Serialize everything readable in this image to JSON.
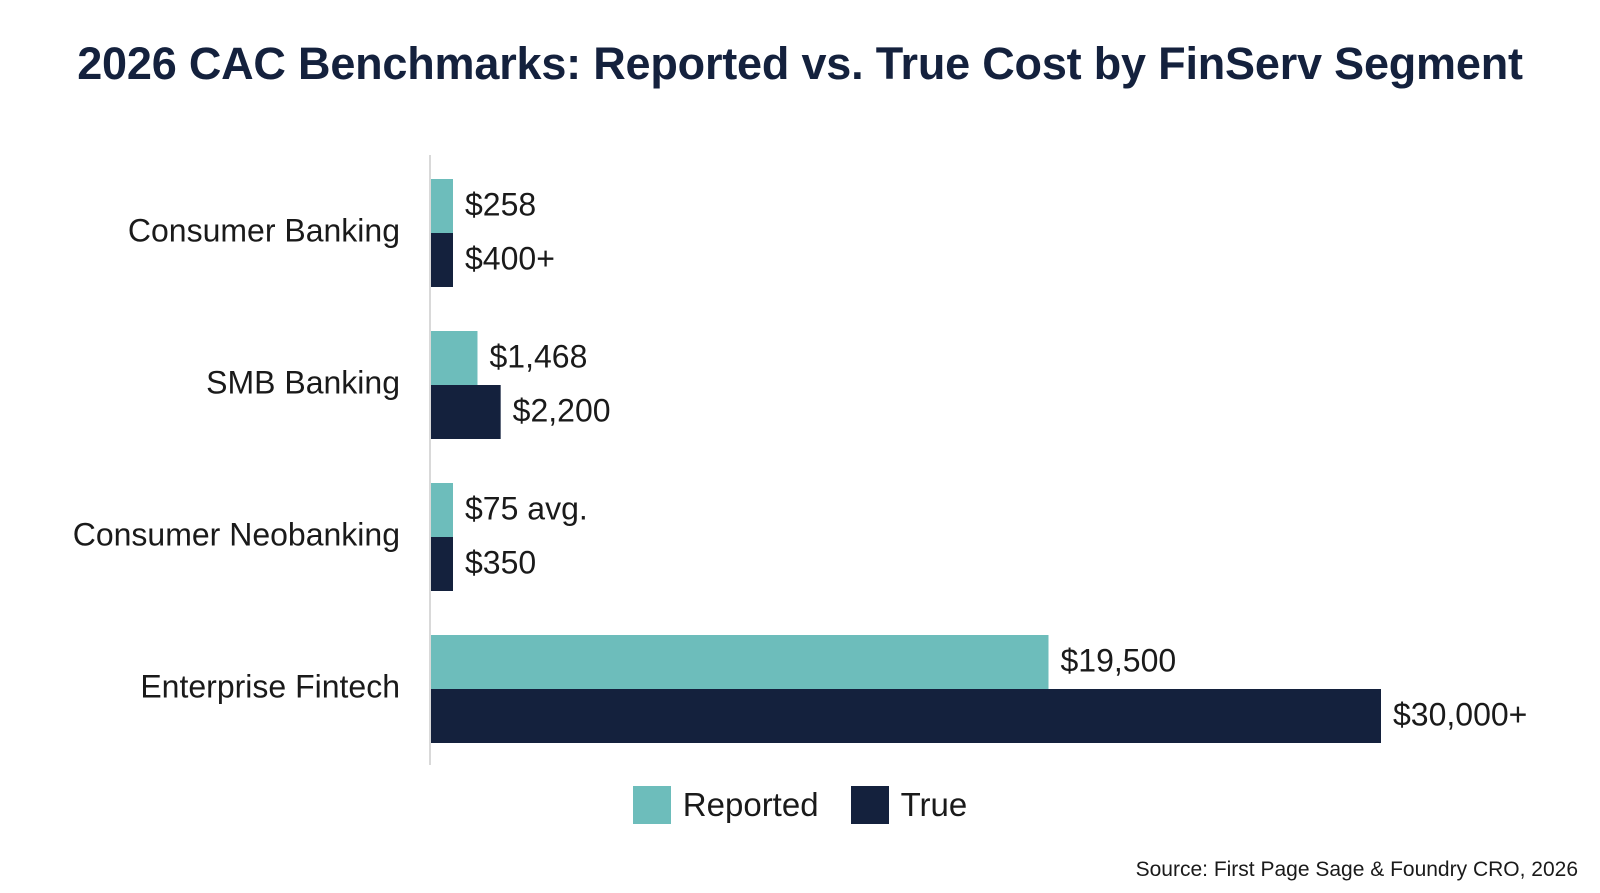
{
  "chart_data": {
    "type": "bar",
    "orientation": "horizontal",
    "title": "2026 CAC Benchmarks: Reported vs. True Cost by FinServ Segment",
    "categories": [
      "Consumer Banking",
      "SMB Banking",
      "Consumer Neobanking",
      "Enterprise Fintech"
    ],
    "series": [
      {
        "name": "Reported",
        "color": "#6dbdbb",
        "values": [
          258,
          1468,
          75,
          19500
        ],
        "labels": [
          "$258",
          "$1,468",
          "$75 avg.",
          "$19,500"
        ]
      },
      {
        "name": "True",
        "color": "#14213d",
        "values": [
          400,
          2200,
          350,
          30000
        ],
        "labels": [
          "$400+",
          "$2,200",
          "$350",
          "$30,000+"
        ]
      }
    ],
    "xlim": [
      0,
      30000
    ],
    "grid": false,
    "legend_position": "bottom-center",
    "source": "Source: First Page Sage & Foundry CRO, 2026"
  }
}
